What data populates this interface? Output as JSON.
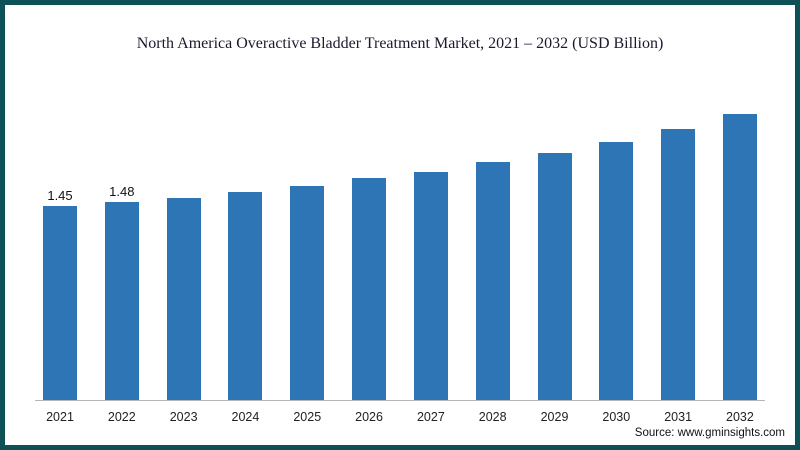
{
  "chart_data": {
    "type": "bar",
    "title": "North America Overactive Bladder Treatment Market, 2021 – 2032 (USD Billion)",
    "categories": [
      "2021",
      "2022",
      "2023",
      "2024",
      "2025",
      "2026",
      "2027",
      "2028",
      "2029",
      "2030",
      "2031",
      "2032"
    ],
    "values": [
      1.45,
      1.48,
      1.51,
      1.56,
      1.6,
      1.66,
      1.71,
      1.78,
      1.85,
      1.93,
      2.03,
      2.14
    ],
    "value_labels": [
      "1.45",
      "1.48",
      "",
      "",
      "",
      "",
      "",
      "",
      "",
      "",
      "",
      ""
    ],
    "xlabel": "",
    "ylabel": "",
    "ylim": [
      0,
      2.3
    ],
    "grid": false,
    "legend": "none",
    "bar_color": "#2e75b6",
    "axis_line_color": "#b5b5b5"
  },
  "frame": {
    "border_color": "#0d5056"
  },
  "source_note": "Source: www.gminsights.com"
}
